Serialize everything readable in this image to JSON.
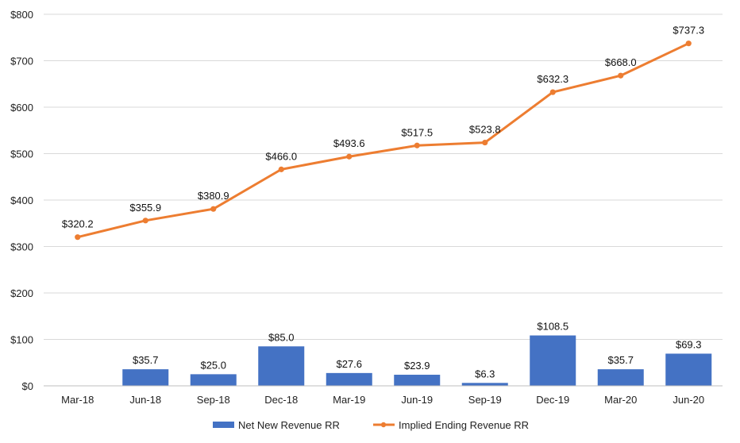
{
  "chart_data": {
    "type": "bar+line",
    "categories": [
      "Mar-18",
      "Jun-18",
      "Sep-18",
      "Dec-18",
      "Mar-19",
      "Jun-19",
      "Sep-19",
      "Dec-19",
      "Mar-20",
      "Jun-20"
    ],
    "series": [
      {
        "name": "Net New Revenue RR",
        "type": "bar",
        "values": [
          null,
          35.7,
          25.0,
          85.0,
          27.6,
          23.9,
          6.3,
          108.5,
          35.7,
          69.3
        ],
        "labels": [
          "",
          "$35.7",
          "$25.0",
          "$85.0",
          "$27.6",
          "$23.9",
          "$6.3",
          "$108.5",
          "$35.7",
          "$69.3"
        ]
      },
      {
        "name": "Implied Ending Revenue RR",
        "type": "line",
        "values": [
          320.2,
          355.9,
          380.9,
          466.0,
          493.6,
          517.5,
          523.8,
          632.3,
          668.0,
          737.3
        ],
        "labels": [
          "$320.2",
          "$355.9",
          "$380.9",
          "$466.0",
          "$493.6",
          "$517.5",
          "$523.8",
          "$632.3",
          "$668.0",
          "$737.3"
        ]
      }
    ],
    "y_ticks": [
      "$0",
      "$100",
      "$200",
      "$300",
      "$400",
      "$500",
      "$600",
      "$700",
      "$800"
    ],
    "ylim": [
      0,
      800
    ],
    "grid": true,
    "legend": "bottom",
    "colors": {
      "bar": "#4472C4",
      "line": "#ED7D31",
      "grid": "#d9d9d9"
    }
  }
}
